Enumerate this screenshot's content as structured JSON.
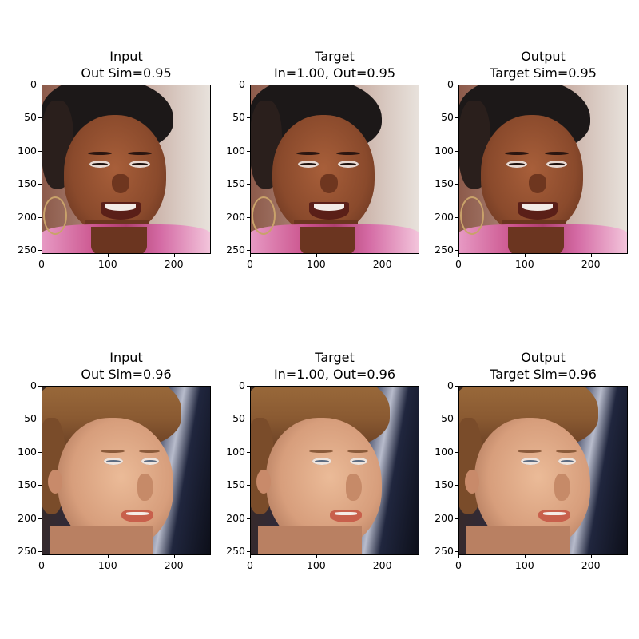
{
  "chart_data": {
    "type": "image-grid",
    "x_ticks": [
      0,
      100,
      200
    ],
    "y_ticks": [
      0,
      50,
      100,
      150,
      200,
      250
    ],
    "xlim": [
      0,
      256
    ],
    "ylim": [
      256,
      0
    ],
    "panels": [
      {
        "row": 1,
        "col": 1,
        "title_line1": "Input",
        "title_line2": "Out Sim=0.95",
        "subject": "face-1"
      },
      {
        "row": 1,
        "col": 2,
        "title_line1": "Target",
        "title_line2": "In=1.00, Out=0.95",
        "subject": "face-1"
      },
      {
        "row": 1,
        "col": 3,
        "title_line1": "Output",
        "title_line2": "Target Sim=0.95",
        "subject": "face-1"
      },
      {
        "row": 2,
        "col": 1,
        "title_line1": "Input",
        "title_line2": "Out Sim=0.96",
        "subject": "face-2"
      },
      {
        "row": 2,
        "col": 2,
        "title_line1": "Target",
        "title_line2": "In=1.00, Out=0.96",
        "subject": "face-2"
      },
      {
        "row": 2,
        "col": 3,
        "title_line1": "Output",
        "title_line2": "Target Sim=0.96",
        "subject": "face-2"
      }
    ]
  },
  "colors": {
    "face1_skin": "#8a4a2c",
    "face1_hair": "#1c1818",
    "face1_bg": "#c7a99a",
    "face1_shirt": "#e79ac4",
    "face2_skin": "#d79e7c",
    "face2_hair": "#8a5a32",
    "face2_bg": "#1b2240",
    "face2_lips": "#c8604c"
  }
}
